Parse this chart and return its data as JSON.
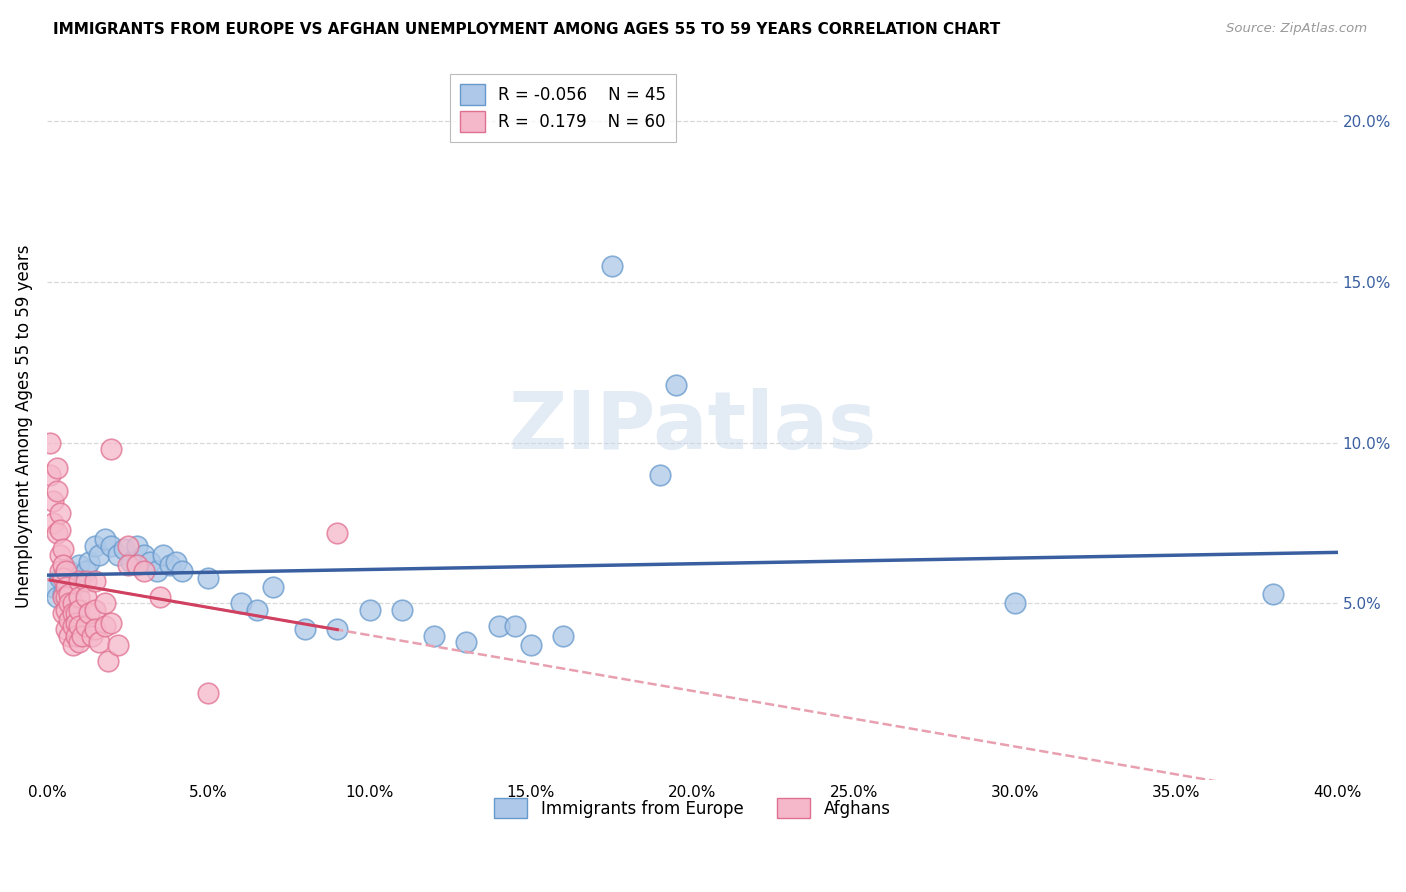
{
  "title": "IMMIGRANTS FROM EUROPE VS AFGHAN UNEMPLOYMENT AMONG AGES 55 TO 59 YEARS CORRELATION CHART",
  "source": "Source: ZipAtlas.com",
  "ylabel": "Unemployment Among Ages 55 to 59 years",
  "xlim": [
    0.0,
    0.4
  ],
  "ylim": [
    -0.005,
    0.215
  ],
  "xticks": [
    0.0,
    0.05,
    0.1,
    0.15,
    0.2,
    0.25,
    0.3,
    0.35,
    0.4
  ],
  "yticks": [
    0.05,
    0.1,
    0.15,
    0.2
  ],
  "ytick_labels": [
    "5.0%",
    "10.0%",
    "15.0%",
    "20.0%"
  ],
  "xtick_labels": [
    "0.0%",
    "5.0%",
    "10.0%",
    "15.0%",
    "20.0%",
    "25.0%",
    "30.0%",
    "35.0%",
    "40.0%"
  ],
  "blue_fill": "#adc8e8",
  "blue_edge": "#6699cc",
  "pink_fill": "#f5b8ca",
  "pink_edge": "#e07090",
  "blue_line_color": "#3a5fa0",
  "pink_line_color": "#d04060",
  "pink_dash_color": "#e8a0b0",
  "legend_blue_R": "-0.056",
  "legend_blue_N": "45",
  "legend_pink_R": " 0.179",
  "legend_pink_N": "60",
  "watermark": "ZIPatlas",
  "grid_color": "#d8d8d8",
  "blue_scatter": [
    [
      0.002,
      0.055
    ],
    [
      0.003,
      0.052
    ],
    [
      0.004,
      0.058
    ],
    [
      0.005,
      0.053
    ],
    [
      0.006,
      0.057
    ],
    [
      0.007,
      0.06
    ],
    [
      0.008,
      0.055
    ],
    [
      0.009,
      0.058
    ],
    [
      0.01,
      0.062
    ],
    [
      0.012,
      0.06
    ],
    [
      0.013,
      0.063
    ],
    [
      0.015,
      0.068
    ],
    [
      0.016,
      0.065
    ],
    [
      0.018,
      0.07
    ],
    [
      0.02,
      0.068
    ],
    [
      0.022,
      0.065
    ],
    [
      0.024,
      0.067
    ],
    [
      0.026,
      0.063
    ],
    [
      0.028,
      0.068
    ],
    [
      0.03,
      0.065
    ],
    [
      0.032,
      0.063
    ],
    [
      0.034,
      0.06
    ],
    [
      0.036,
      0.065
    ],
    [
      0.038,
      0.062
    ],
    [
      0.04,
      0.063
    ],
    [
      0.042,
      0.06
    ],
    [
      0.05,
      0.058
    ],
    [
      0.06,
      0.05
    ],
    [
      0.065,
      0.048
    ],
    [
      0.07,
      0.055
    ],
    [
      0.08,
      0.042
    ],
    [
      0.09,
      0.042
    ],
    [
      0.1,
      0.048
    ],
    [
      0.11,
      0.048
    ],
    [
      0.12,
      0.04
    ],
    [
      0.13,
      0.038
    ],
    [
      0.14,
      0.043
    ],
    [
      0.145,
      0.043
    ],
    [
      0.15,
      0.037
    ],
    [
      0.16,
      0.04
    ],
    [
      0.175,
      0.155
    ],
    [
      0.19,
      0.09
    ],
    [
      0.195,
      0.118
    ],
    [
      0.3,
      0.05
    ],
    [
      0.38,
      0.053
    ]
  ],
  "pink_scatter": [
    [
      0.001,
      0.1
    ],
    [
      0.001,
      0.09
    ],
    [
      0.002,
      0.082
    ],
    [
      0.002,
      0.075
    ],
    [
      0.003,
      0.092
    ],
    [
      0.003,
      0.085
    ],
    [
      0.003,
      0.072
    ],
    [
      0.004,
      0.078
    ],
    [
      0.004,
      0.073
    ],
    [
      0.004,
      0.065
    ],
    [
      0.004,
      0.06
    ],
    [
      0.005,
      0.067
    ],
    [
      0.005,
      0.062
    ],
    [
      0.005,
      0.058
    ],
    [
      0.005,
      0.052
    ],
    [
      0.005,
      0.047
    ],
    [
      0.006,
      0.06
    ],
    [
      0.006,
      0.055
    ],
    [
      0.006,
      0.052
    ],
    [
      0.006,
      0.048
    ],
    [
      0.006,
      0.042
    ],
    [
      0.007,
      0.053
    ],
    [
      0.007,
      0.05
    ],
    [
      0.007,
      0.045
    ],
    [
      0.007,
      0.04
    ],
    [
      0.008,
      0.05
    ],
    [
      0.008,
      0.047
    ],
    [
      0.008,
      0.043
    ],
    [
      0.008,
      0.037
    ],
    [
      0.009,
      0.047
    ],
    [
      0.009,
      0.044
    ],
    [
      0.009,
      0.04
    ],
    [
      0.01,
      0.057
    ],
    [
      0.01,
      0.052
    ],
    [
      0.01,
      0.048
    ],
    [
      0.01,
      0.043
    ],
    [
      0.01,
      0.038
    ],
    [
      0.011,
      0.04
    ],
    [
      0.012,
      0.057
    ],
    [
      0.012,
      0.052
    ],
    [
      0.012,
      0.043
    ],
    [
      0.013,
      0.047
    ],
    [
      0.014,
      0.04
    ],
    [
      0.015,
      0.057
    ],
    [
      0.015,
      0.048
    ],
    [
      0.015,
      0.042
    ],
    [
      0.016,
      0.038
    ],
    [
      0.018,
      0.05
    ],
    [
      0.018,
      0.043
    ],
    [
      0.019,
      0.032
    ],
    [
      0.02,
      0.098
    ],
    [
      0.02,
      0.044
    ],
    [
      0.022,
      0.037
    ],
    [
      0.025,
      0.068
    ],
    [
      0.025,
      0.062
    ],
    [
      0.028,
      0.062
    ],
    [
      0.03,
      0.06
    ],
    [
      0.035,
      0.052
    ],
    [
      0.05,
      0.022
    ],
    [
      0.09,
      0.072
    ]
  ]
}
